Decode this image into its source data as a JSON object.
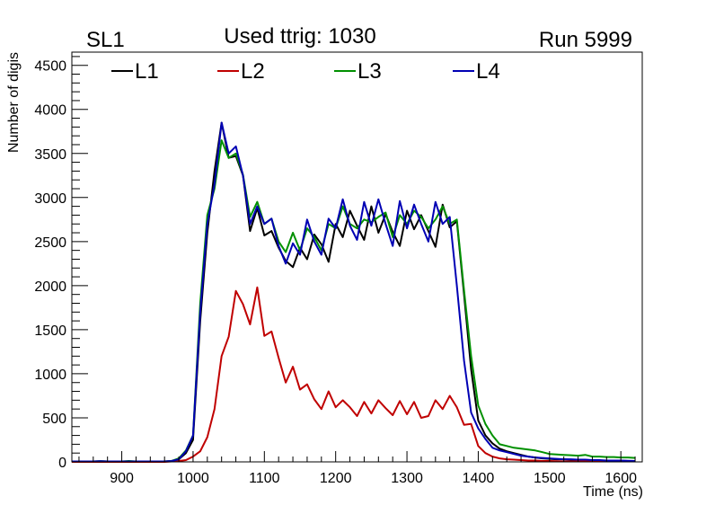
{
  "header": {
    "left_label": "SL1",
    "title": "Used ttrig: 1030",
    "right_label": "Run 5999"
  },
  "chart_data": {
    "type": "line",
    "xlabel": "Time (ns)",
    "ylabel": "Number of digis",
    "xlim": [
      830,
      1630
    ],
    "ylim": [
      0,
      4650
    ],
    "xticks": [
      900,
      1000,
      1100,
      1200,
      1300,
      1400,
      1500,
      1600
    ],
    "yticks": [
      0,
      500,
      1000,
      1500,
      2000,
      2500,
      3000,
      3500,
      4000,
      4500
    ],
    "grid": false,
    "legend_position": "top",
    "x": [
      830,
      840,
      850,
      860,
      870,
      880,
      890,
      900,
      910,
      920,
      930,
      940,
      950,
      960,
      970,
      980,
      990,
      1000,
      1010,
      1020,
      1030,
      1040,
      1050,
      1060,
      1070,
      1080,
      1090,
      1100,
      1110,
      1120,
      1130,
      1140,
      1150,
      1160,
      1170,
      1180,
      1190,
      1200,
      1210,
      1220,
      1230,
      1240,
      1250,
      1260,
      1270,
      1280,
      1290,
      1300,
      1310,
      1320,
      1330,
      1340,
      1350,
      1360,
      1370,
      1380,
      1390,
      1400,
      1410,
      1420,
      1430,
      1440,
      1450,
      1460,
      1470,
      1480,
      1490,
      1500,
      1510,
      1520,
      1530,
      1540,
      1550,
      1560,
      1570,
      1580,
      1590,
      1600,
      1610,
      1620
    ],
    "series": [
      {
        "name": "L1",
        "color": "#000000",
        "values": [
          5,
          5,
          5,
          5,
          8,
          5,
          5,
          5,
          5,
          5,
          5,
          5,
          5,
          5,
          10,
          30,
          100,
          250,
          1600,
          2600,
          3300,
          3850,
          3450,
          3470,
          3250,
          2620,
          2880,
          2570,
          2620,
          2430,
          2280,
          2210,
          2430,
          2300,
          2580,
          2470,
          2270,
          2700,
          2550,
          2850,
          2680,
          2520,
          2900,
          2600,
          2810,
          2610,
          2450,
          2850,
          2640,
          2800,
          2620,
          2440,
          2920,
          2660,
          2730,
          1900,
          1050,
          470,
          300,
          210,
          150,
          120,
          100,
          80,
          60,
          50,
          40,
          35,
          30,
          30,
          25,
          25,
          20,
          20,
          15,
          15,
          15,
          12,
          10,
          10
        ]
      },
      {
        "name": "L2",
        "color": "#c00000",
        "values": [
          0,
          0,
          0,
          0,
          0,
          0,
          0,
          0,
          0,
          0,
          0,
          0,
          0,
          0,
          5,
          10,
          20,
          60,
          120,
          280,
          600,
          1200,
          1420,
          1940,
          1790,
          1560,
          1980,
          1430,
          1480,
          1180,
          900,
          1080,
          820,
          880,
          710,
          600,
          800,
          620,
          700,
          620,
          520,
          680,
          550,
          700,
          610,
          530,
          690,
          540,
          680,
          500,
          520,
          700,
          600,
          750,
          620,
          420,
          430,
          180,
          100,
          60,
          40,
          30,
          25,
          20,
          15,
          15,
          10,
          10,
          8,
          5,
          5,
          5,
          5,
          5,
          5,
          5,
          5,
          5,
          5,
          5
        ]
      },
      {
        "name": "L3",
        "color": "#009000",
        "values": [
          5,
          5,
          5,
          5,
          8,
          5,
          5,
          5,
          10,
          5,
          5,
          5,
          5,
          5,
          10,
          40,
          130,
          300,
          1800,
          2800,
          3100,
          3650,
          3450,
          3500,
          3260,
          2780,
          2950,
          2700,
          2760,
          2500,
          2380,
          2600,
          2400,
          2650,
          2550,
          2400,
          2700,
          2650,
          2900,
          2700,
          2650,
          2750,
          2720,
          2780,
          2830,
          2550,
          2800,
          2700,
          2850,
          2780,
          2650,
          2750,
          2900,
          2700,
          2750,
          1950,
          1200,
          640,
          430,
          300,
          200,
          180,
          160,
          150,
          140,
          130,
          110,
          90,
          85,
          80,
          75,
          70,
          80,
          60,
          60,
          55,
          55,
          50,
          50,
          45
        ]
      },
      {
        "name": "L4",
        "color": "#0000b4",
        "values": [
          5,
          5,
          5,
          5,
          8,
          5,
          5,
          5,
          5,
          5,
          5,
          5,
          5,
          5,
          10,
          30,
          120,
          300,
          1700,
          2700,
          3150,
          3850,
          3500,
          3580,
          3250,
          2700,
          2900,
          2700,
          2760,
          2450,
          2250,
          2480,
          2350,
          2750,
          2500,
          2350,
          2760,
          2650,
          2980,
          2680,
          2520,
          2950,
          2680,
          2980,
          2700,
          2450,
          2960,
          2650,
          2920,
          2700,
          2500,
          2950,
          2700,
          2780,
          2000,
          1150,
          560,
          380,
          260,
          160,
          130,
          110,
          90,
          70,
          60,
          50,
          45,
          40,
          35,
          30,
          30,
          25,
          25,
          20,
          20,
          15,
          15,
          15,
          12,
          10
        ]
      }
    ]
  }
}
